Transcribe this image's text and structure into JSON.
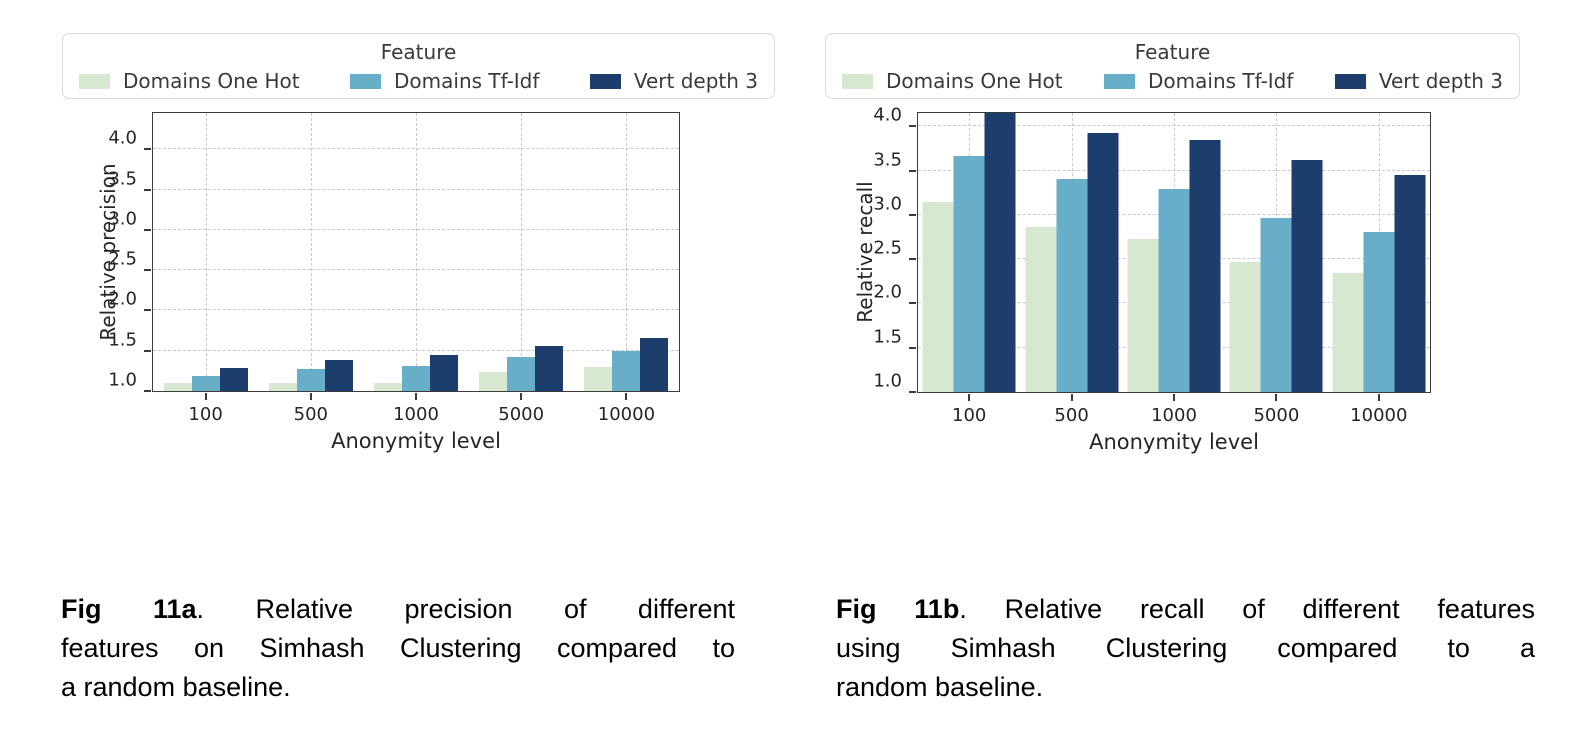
{
  "page": {
    "background": "#ffffff"
  },
  "legend": {
    "title": "Feature",
    "items": [
      {
        "label": "Domains One Hot",
        "color": "#d6e8d0"
      },
      {
        "label": "Domains Tf-Idf",
        "color": "#68aec8"
      },
      {
        "label": "Vert depth 3",
        "color": "#1d3e6c"
      }
    ]
  },
  "chart_data": [
    {
      "id": "fig-a",
      "type": "bar",
      "title": "",
      "xlabel": "Anonymity level",
      "ylabel": "Relative precision",
      "categories": [
        "100",
        "500",
        "1000",
        "5000",
        "10000"
      ],
      "series": [
        {
          "name": "Domains One Hot",
          "color": "#d6e8d0",
          "values": [
            1.1,
            1.1,
            1.1,
            1.24,
            1.3
          ]
        },
        {
          "name": "Domains Tf-Idf",
          "color": "#68aec8",
          "values": [
            1.19,
            1.27,
            1.31,
            1.42,
            1.5
          ]
        },
        {
          "name": "Vert depth 3",
          "color": "#1d3e6c",
          "values": [
            1.29,
            1.39,
            1.45,
            1.56,
            1.66
          ]
        }
      ],
      "ylim": [
        1.0,
        4.45
      ],
      "yticks": [
        1.0,
        1.5,
        2.0,
        2.5,
        3.0,
        3.5,
        4.0
      ],
      "ytick_labels": [
        "1.0",
        "1.5",
        "2.0",
        "2.5",
        "3.0",
        "3.5",
        "4.0"
      ],
      "grid": "dashed horizontal and vertical",
      "legend_position": "top"
    },
    {
      "id": "fig-b",
      "type": "bar",
      "title": "",
      "xlabel": "Anonymity level",
      "ylabel": "Relative recall",
      "categories": [
        "100",
        "500",
        "1000",
        "5000",
        "10000"
      ],
      "series": [
        {
          "name": "Domains One Hot",
          "color": "#d6e8d0",
          "values": [
            3.15,
            2.86,
            2.73,
            2.47,
            2.34
          ]
        },
        {
          "name": "Domains Tf-Idf",
          "color": "#68aec8",
          "values": [
            3.67,
            3.4,
            3.29,
            2.97,
            2.81
          ]
        },
        {
          "name": "Vert depth 3",
          "color": "#1d3e6c",
          "values": [
            4.18,
            3.93,
            3.84,
            3.62,
            3.45
          ]
        }
      ],
      "ylim": [
        1.0,
        4.15
      ],
      "yticks": [
        1.0,
        1.5,
        2.0,
        2.5,
        3.0,
        3.5,
        4.0
      ],
      "ytick_labels": [
        "1.0",
        "1.5",
        "2.0",
        "2.5",
        "3.0",
        "3.5",
        "4.0"
      ],
      "grid": "dashed horizontal and vertical",
      "legend_position": "top",
      "annotations": [
        "Vert depth 3 bar at anonymity level 100 is clipped by the top of the axes"
      ]
    }
  ],
  "captions": {
    "left": {
      "bold": "Fig 11a",
      "line1_rest": ". Relative precision of different",
      "line2": "features on Simhash Clustering compared to",
      "line3": "a random baseline."
    },
    "right": {
      "bold": "Fig 11b",
      "line1_rest": ". Relative recall of different features",
      "line2": "using Simhash Clustering compared to a",
      "line3": "random baseline."
    }
  }
}
